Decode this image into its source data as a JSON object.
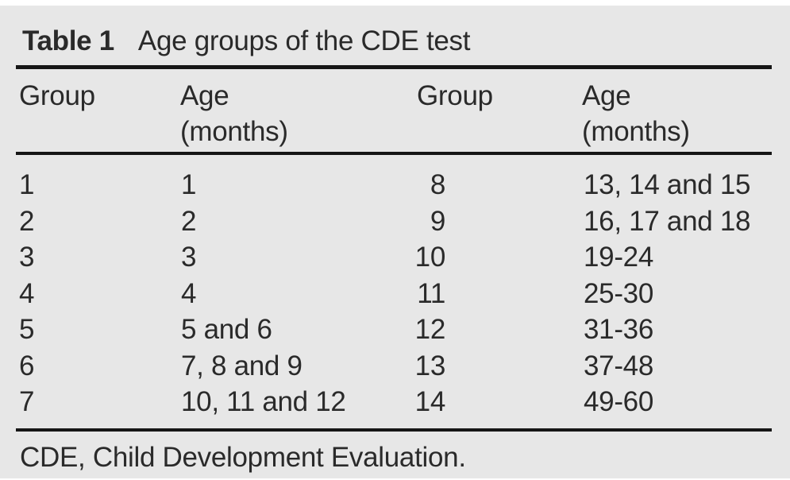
{
  "title": {
    "label": "Table 1",
    "text": "Age groups of the CDE test"
  },
  "table": {
    "headers": {
      "group_left": "Group",
      "age_left_line1": "Age",
      "age_left_line2": "(months)",
      "group_right": "Group",
      "age_right_line1": "Age",
      "age_right_line2": "(months)"
    },
    "rows": [
      {
        "group_left": "1",
        "age_left": "1",
        "group_right": "8",
        "age_right": "13, 14 and 15"
      },
      {
        "group_left": "2",
        "age_left": "2",
        "group_right": "9",
        "age_right": "16, 17 and 18"
      },
      {
        "group_left": "3",
        "age_left": "3",
        "group_right": "10",
        "age_right": "19-24"
      },
      {
        "group_left": "4",
        "age_left": "4",
        "group_right": "11",
        "age_right": "25-30"
      },
      {
        "group_left": "5",
        "age_left": "5 and 6",
        "group_right": "12",
        "age_right": "31-36"
      },
      {
        "group_left": "6",
        "age_left": "7, 8 and 9",
        "group_right": "13",
        "age_right": "37-48"
      },
      {
        "group_left": "7",
        "age_left": "10, 11 and 12",
        "group_right": "14",
        "age_right": "49-60"
      }
    ]
  },
  "footnote": "CDE, Child Development Evaluation.",
  "colors": {
    "page": "#ffffff",
    "background": "#e7e7e7",
    "text": "#2a2a2a",
    "rule": "#161616"
  }
}
